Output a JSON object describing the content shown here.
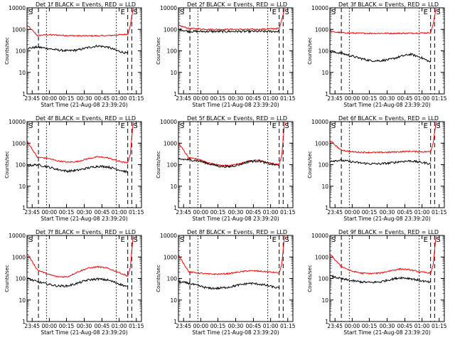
{
  "chart_data": {
    "type": "line",
    "scale": "log",
    "ylim": [
      1,
      10000
    ],
    "y_ticks": [
      1,
      10,
      100,
      1000,
      10000
    ],
    "y_tick_labels": [
      "1",
      "10",
      "100",
      "1000",
      "10000"
    ],
    "x_tick_labels": [
      "23:45",
      "00:00",
      "00:15",
      "00:30",
      "00:45",
      "01:00",
      "01:15"
    ],
    "xlabel": "Start Time (21-Aug-08 23:39:20)",
    "ylabel": "Counts/sec",
    "markers": {
      "s_label": "S",
      "e_label": "E"
    },
    "colors": {
      "events": "#000000",
      "lld": "#ff0000"
    },
    "panels": [
      {
        "title": "Det 1f BLACK = Events, RED = LLD",
        "lld_profile": [
          1500,
          520,
          560,
          540,
          520,
          500,
          500,
          500,
          510,
          550,
          600
        ],
        "events_profile": [
          130,
          150,
          130,
          110,
          100,
          110,
          140,
          170,
          150,
          100,
          75
        ]
      },
      {
        "title": "Det 2f BLACK = Events, RED = LLD",
        "lld_profile": [
          1500,
          1100,
          1050,
          1000,
          1000,
          1000,
          1000,
          1000,
          1000,
          1050,
          1100
        ],
        "events_profile": [
          1000,
          800,
          800,
          800,
          800,
          800,
          800,
          800,
          800,
          800,
          800
        ]
      },
      {
        "title": "Det 3f BLACK = Events, RED = LLD",
        "lld_profile": [
          800,
          700,
          680,
          660,
          650,
          650,
          650,
          650,
          660,
          680,
          700
        ],
        "events_profile": [
          90,
          80,
          60,
          45,
          35,
          35,
          40,
          55,
          70,
          50,
          30
        ]
      },
      {
        "title": "Det 4f BLACK = Events, RED = LLD",
        "lld_profile": [
          1200,
          220,
          200,
          150,
          130,
          140,
          190,
          230,
          210,
          150,
          120
        ],
        "events_profile": [
          90,
          100,
          80,
          60,
          50,
          55,
          70,
          85,
          80,
          60,
          45
        ]
      },
      {
        "title": "Det 5f BLACK = Events, RED = LLD",
        "lld_profile": [
          1000,
          200,
          180,
          120,
          95,
          90,
          110,
          150,
          160,
          120,
          100
        ],
        "events_profile": [
          180,
          170,
          150,
          110,
          85,
          80,
          100,
          140,
          150,
          110,
          90
        ]
      },
      {
        "title": "Det 6f BLACK = Events, RED = LLD",
        "lld_profile": [
          1300,
          500,
          400,
          380,
          370,
          370,
          380,
          400,
          420,
          400,
          400
        ],
        "events_profile": [
          150,
          160,
          140,
          120,
          110,
          110,
          120,
          140,
          150,
          130,
          110
        ]
      },
      {
        "title": "Det 7f BLACK = Events, RED = LLD",
        "lld_profile": [
          1400,
          250,
          160,
          120,
          120,
          200,
          300,
          350,
          300,
          200,
          130
        ],
        "events_profile": [
          100,
          70,
          55,
          45,
          45,
          60,
          85,
          95,
          85,
          60,
          40
        ]
      },
      {
        "title": "Det 8f BLACK = Events, RED = LLD",
        "lld_profile": [
          1200,
          200,
          180,
          160,
          160,
          170,
          200,
          230,
          220,
          200,
          180
        ],
        "events_profile": [
          70,
          60,
          45,
          35,
          35,
          40,
          50,
          60,
          55,
          45,
          35
        ]
      },
      {
        "title": "Det 9f BLACK = Events, RED = LLD",
        "lld_profile": [
          1300,
          400,
          230,
          180,
          170,
          180,
          230,
          280,
          250,
          200,
          180
        ],
        "events_profile": [
          130,
          100,
          80,
          70,
          65,
          70,
          90,
          110,
          100,
          80,
          65
        ]
      }
    ]
  }
}
